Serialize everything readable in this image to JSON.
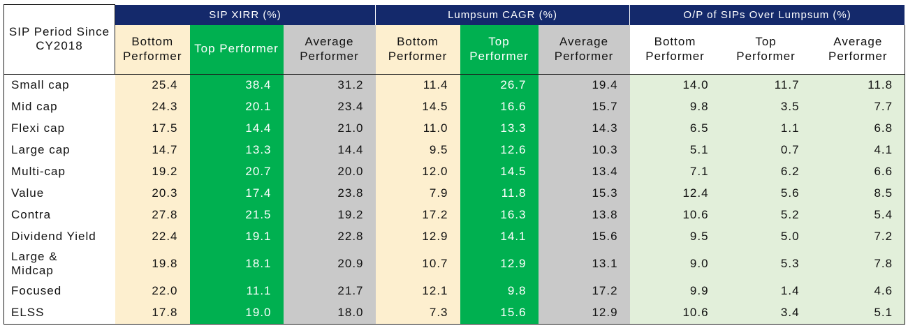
{
  "table": {
    "corner_label": "SIP Period Since CY2018",
    "groups": [
      {
        "label": "SIP XIRR (%)"
      },
      {
        "label": "Lumpsum CAGR (%)"
      },
      {
        "label": "O/P of SIPs Over Lumpsum (%)"
      }
    ],
    "subheaders": [
      "Bottom Performer",
      "Top Performer",
      "Average Performer",
      "Bottom Performer",
      "Top Performer",
      "Average Performer",
      "Bottom Performer",
      "Top Performer",
      "Average Performer"
    ],
    "rows": [
      {
        "label": "Small cap",
        "values": [
          "25.4",
          "38.4",
          "31.2",
          "11.4",
          "26.7",
          "19.4",
          "14.0",
          "11.7",
          "11.8"
        ]
      },
      {
        "label": "Mid cap",
        "values": [
          "24.3",
          "20.1",
          "23.4",
          "14.5",
          "16.6",
          "15.7",
          "9.8",
          "3.5",
          "7.7"
        ]
      },
      {
        "label": "Flexi cap",
        "values": [
          "17.5",
          "14.4",
          "21.0",
          "11.0",
          "13.3",
          "14.3",
          "6.5",
          "1.1",
          "6.8"
        ]
      },
      {
        "label": "Large cap",
        "values": [
          "14.7",
          "13.3",
          "14.4",
          "9.5",
          "12.6",
          "10.3",
          "5.1",
          "0.7",
          "4.1"
        ]
      },
      {
        "label": "Multi-cap",
        "values": [
          "19.2",
          "20.7",
          "20.0",
          "12.0",
          "14.5",
          "13.4",
          "7.1",
          "6.2",
          "6.6"
        ]
      },
      {
        "label": "Value",
        "values": [
          "20.3",
          "17.4",
          "23.8",
          "7.9",
          "11.8",
          "15.3",
          "12.4",
          "5.6",
          "8.5"
        ]
      },
      {
        "label": "Contra",
        "values": [
          "27.8",
          "21.5",
          "19.2",
          "17.2",
          "16.3",
          "13.8",
          "10.6",
          "5.2",
          "5.4"
        ]
      },
      {
        "label": "Dividend Yield",
        "values": [
          "22.4",
          "19.1",
          "22.8",
          "12.9",
          "14.1",
          "15.6",
          "9.5",
          "5.0",
          "7.2"
        ]
      },
      {
        "label": "Large & Midcap",
        "values": [
          "19.8",
          "18.1",
          "20.9",
          "10.7",
          "12.9",
          "13.1",
          "9.0",
          "5.3",
          "7.8"
        ]
      },
      {
        "label": "Focused",
        "values": [
          "22.0",
          "11.1",
          "21.7",
          "12.1",
          "9.8",
          "17.2",
          "9.9",
          "1.4",
          "4.6"
        ]
      },
      {
        "label": "ELSS",
        "values": [
          "17.8",
          "19.0",
          "18.0",
          "7.3",
          "15.6",
          "12.9",
          "10.6",
          "3.4",
          "5.1"
        ]
      }
    ]
  },
  "colors": {
    "header_navy": "#14296b",
    "bottom_performer": "#fdefcf",
    "top_performer": "#00b050",
    "average_performer": "#c9c9c9",
    "outperformance": "#e2efda"
  }
}
